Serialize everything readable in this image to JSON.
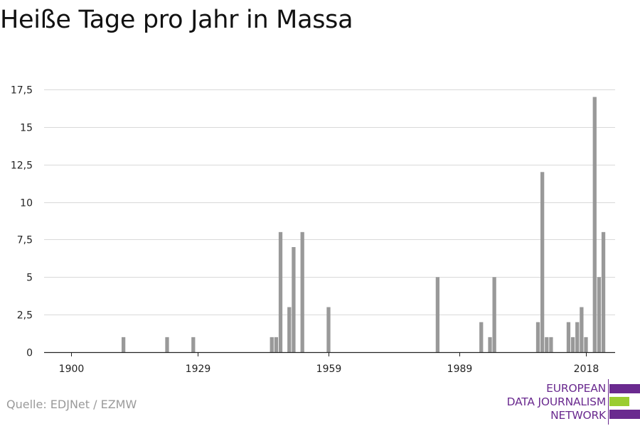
{
  "title": "Heiße Tage pro Jahr in Massa",
  "source": "Quelle: EDJNet / EZMW",
  "logo": {
    "lines": [
      "EUROPEAN",
      "DATA JOURNALISM",
      "NETWORK"
    ],
    "colors": [
      "#6a2a8f",
      "#9acd32",
      "#6a2a8f"
    ]
  },
  "colors": {
    "bar": "#999999",
    "grid": "#d9d9d9",
    "axis": "#222222"
  },
  "chart_data": {
    "type": "bar",
    "title": "Heiße Tage pro Jahr in Massa",
    "xlabel": "",
    "ylabel": "",
    "xlim": [
      1900,
      2018
    ],
    "ylim": [
      0,
      17.5
    ],
    "x_ticks": [
      1900,
      1929,
      1959,
      1989,
      2018
    ],
    "x_tick_labels": [
      "1900",
      "1929",
      "1959",
      "1989",
      "2018"
    ],
    "y_ticks": [
      0,
      2.5,
      5,
      7.5,
      10,
      12.5,
      15,
      17.5
    ],
    "y_tick_labels": [
      "0",
      "2,5",
      "5",
      "7,5",
      "10",
      "12,5",
      "15",
      "17,5"
    ],
    "grid": true,
    "x": [
      1912,
      1922,
      1928,
      1946,
      1947,
      1948,
      1950,
      1951,
      1953,
      1959,
      1984,
      1994,
      1996,
      1997,
      2007,
      2008,
      2009,
      2010,
      2014,
      2015,
      2016,
      2017,
      2018,
      2020,
      2021,
      2022
    ],
    "values": [
      1,
      1,
      1,
      1,
      1,
      8,
      3,
      7,
      8,
      3,
      5,
      2,
      1,
      5,
      2,
      12,
      1,
      1,
      2,
      1,
      2,
      3,
      1,
      17,
      5,
      8
    ]
  }
}
